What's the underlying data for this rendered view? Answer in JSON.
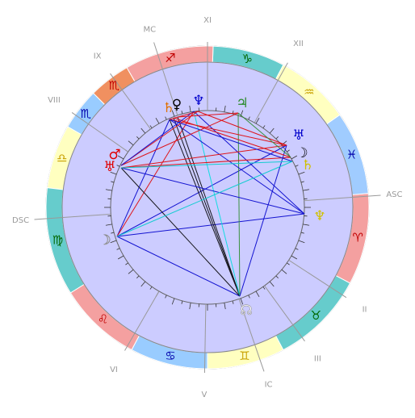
{
  "houses": [
    "ASC",
    "XII",
    "XI",
    "MC",
    "IX",
    "VIII",
    "DSC",
    "VI",
    "V",
    "IC",
    "III",
    "II"
  ],
  "signs": [
    "♈",
    "♓",
    "♒",
    "♑",
    "♐",
    "♏",
    "♏",
    "♎",
    "♍",
    "♌",
    "♋",
    "♊",
    "♉"
  ],
  "planets": [
    "♄",
    "♀",
    "♆",
    "♃",
    "♅",
    "☽",
    "♄",
    "♂",
    "♅",
    "♆",
    "☽",
    "☊"
  ]
}
